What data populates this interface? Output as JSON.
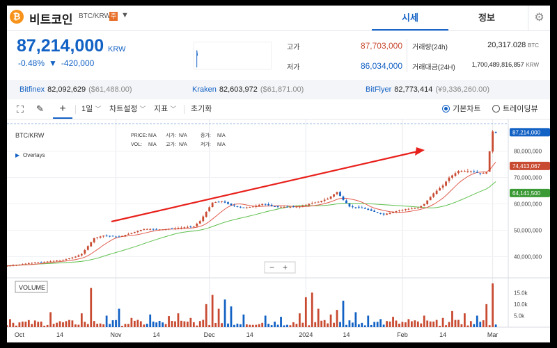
{
  "header": {
    "coin_icon": "₿",
    "coin_name": "비트코인",
    "pair": "BTC/KRW",
    "warning_badge": "주",
    "tabs": [
      "시세",
      "정보"
    ],
    "settings_icon": "gear-icon"
  },
  "price": {
    "current": "87,214,000",
    "unit": "KRW",
    "change_rate": "-0.48%",
    "change_arrow": "▼",
    "change_amount": "-420,000"
  },
  "stats": {
    "high_label": "고가",
    "high": "87,703,000",
    "low_label": "저가",
    "low": "86,034,000",
    "vol_label": "거래량(24h)",
    "vol": "20,317.028",
    "vol_unit": "BTC",
    "amt_label": "거래대금(24H)",
    "amt": "1,700,489,816,857",
    "amt_unit": "KRW"
  },
  "exchanges": [
    {
      "name": "Bitfinex",
      "price": "82,092,629",
      "usd": "($61,488.00)"
    },
    {
      "name": "Kraken",
      "price": "82,603,972",
      "usd": "($61,871.00)"
    },
    {
      "name": "BitFlyer",
      "price": "82,773,414",
      "usd": "(¥9,336,260.00)"
    }
  ],
  "toolbar": {
    "interval": "1일",
    "chart_settings": "차트설정",
    "indicators": "지표",
    "reset": "초기화",
    "basic_chart": "기본차트",
    "trading_view": "트레이딩뷰"
  },
  "colors": {
    "up": "#c84a31",
    "down": "#1261c4",
    "ma_short": "#e05a4a",
    "ma_long": "#5cbf4a",
    "arrow": "#e8201b"
  },
  "chart_data": {
    "type": "candlestick",
    "symbol": "BTC/KRW",
    "overlays_label": "Overlays",
    "ohlc_legend": {
      "row1": [
        "PRICE:",
        "N/A",
        "시가:",
        "N/A",
        "종가:",
        "N/A"
      ],
      "row2": [
        "VOL:",
        "N/A",
        "고가:",
        "N/A",
        "저가:",
        "N/A"
      ]
    },
    "y_ticks": [
      "80,000,000",
      "70,000,000",
      "60,000,000",
      "50,000,000",
      "40,000,000"
    ],
    "y_tick_values": [
      80000000,
      70000000,
      60000000,
      50000000,
      40000000
    ],
    "ylim": [
      33000000,
      91000000
    ],
    "x_labels": [
      "Oct",
      "14",
      "Nov",
      "14",
      "Dec",
      "14",
      "2024",
      "14",
      "Feb",
      "14",
      "Mar"
    ],
    "x_label_days": [
      0,
      13,
      31,
      44,
      61,
      74,
      92,
      105,
      123,
      136,
      152
    ],
    "day_range": [
      -4,
      157
    ],
    "price_tags": [
      {
        "label": "87,214,000",
        "value": 87214000,
        "color": "#1261c4"
      },
      {
        "label": "74,413,067",
        "value": 74413067,
        "color": "#c84a31"
      },
      {
        "label": "64,141,500",
        "value": 64141500,
        "color": "#3c9a36"
      }
    ],
    "close_ctrl": [
      [
        -4,
        36.5
      ],
      [
        0,
        37
      ],
      [
        5,
        37.8
      ],
      [
        10,
        38.2
      ],
      [
        15,
        39
      ],
      [
        18,
        40
      ],
      [
        20,
        41
      ],
      [
        22,
        44
      ],
      [
        24,
        47
      ],
      [
        27,
        48
      ],
      [
        32,
        47.5
      ],
      [
        36,
        49
      ],
      [
        40,
        50.5
      ],
      [
        46,
        50.3
      ],
      [
        52,
        51
      ],
      [
        56,
        51.5
      ],
      [
        58,
        53.5
      ],
      [
        60,
        57
      ],
      [
        62,
        60.5
      ],
      [
        65,
        61
      ],
      [
        68,
        59.5
      ],
      [
        72,
        58.5
      ],
      [
        75,
        59
      ],
      [
        78,
        60
      ],
      [
        82,
        59
      ],
      [
        86,
        58.8
      ],
      [
        90,
        59
      ],
      [
        93,
        60
      ],
      [
        96,
        60.8
      ],
      [
        99,
        62
      ],
      [
        102,
        64.5
      ],
      [
        104,
        61.5
      ],
      [
        106,
        59
      ],
      [
        110,
        58.5
      ],
      [
        114,
        57
      ],
      [
        117,
        56
      ],
      [
        120,
        57
      ],
      [
        124,
        58
      ],
      [
        128,
        58.5
      ],
      [
        130,
        60
      ],
      [
        133,
        64
      ],
      [
        136,
        67
      ],
      [
        138,
        70
      ],
      [
        141,
        72.5
      ],
      [
        145,
        72.5
      ],
      [
        148,
        71.5
      ],
      [
        150,
        72
      ],
      [
        151,
        80
      ],
      [
        152,
        87.5
      ],
      [
        153,
        87.2
      ]
    ],
    "volume_label": "VOLUME",
    "volume_ticks": [
      "15.0k",
      "10.0k",
      "5.0k"
    ],
    "volume_tick_values": [
      15000,
      10000,
      5000
    ],
    "volume_max": 19000,
    "volume_spikes": [
      [
        -3,
        3500
      ],
      [
        10,
        6500
      ],
      [
        20,
        6000
      ],
      [
        23,
        17000
      ],
      [
        28,
        5000
      ],
      [
        32,
        8000
      ],
      [
        36,
        4000
      ],
      [
        42,
        5500
      ],
      [
        48,
        4800
      ],
      [
        51,
        6000
      ],
      [
        55,
        4000
      ],
      [
        60,
        10000
      ],
      [
        62,
        14000
      ],
      [
        64,
        8000
      ],
      [
        66,
        12000
      ],
      [
        68,
        9000
      ],
      [
        72,
        5500
      ],
      [
        79,
        5000
      ],
      [
        84,
        4500
      ],
      [
        90,
        6000
      ],
      [
        92,
        13000
      ],
      [
        94,
        15000
      ],
      [
        96,
        8000
      ],
      [
        100,
        5500
      ],
      [
        102,
        7500
      ],
      [
        104,
        11500
      ],
      [
        108,
        6500
      ],
      [
        112,
        5000
      ],
      [
        116,
        3500
      ],
      [
        120,
        4500
      ],
      [
        125,
        3500
      ],
      [
        130,
        5000
      ],
      [
        136,
        4000
      ],
      [
        139,
        7000
      ],
      [
        143,
        6000
      ],
      [
        147,
        5000
      ],
      [
        150,
        10000
      ],
      [
        152,
        19000
      ],
      [
        154,
        2500
      ]
    ]
  }
}
